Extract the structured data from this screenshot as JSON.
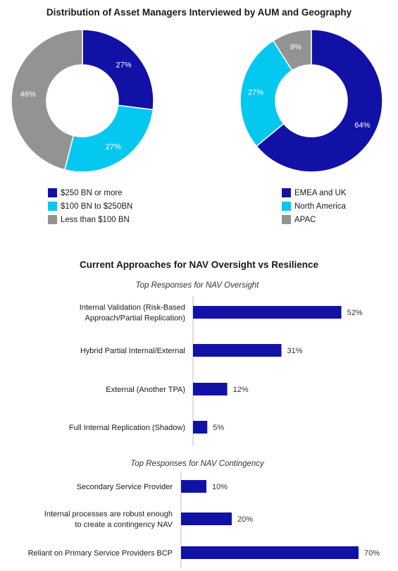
{
  "page": {
    "title": "Distribution of Asset Managers Interviewed by AUM and Geography",
    "section_title": "Current Approaches for NAV Oversight vs Resilience"
  },
  "chart_data": [
    {
      "type": "pie",
      "variant": "donut",
      "slices": [
        {
          "label": "$250 BN or more",
          "value": 27,
          "color": "#1111a6",
          "text": "27%"
        },
        {
          "label": "$100 BN to $250BN",
          "value": 27,
          "color": "#05c8f0",
          "text": "27%"
        },
        {
          "label": "Less than $100 BN",
          "value": 46,
          "color": "#939393",
          "text": "46%"
        }
      ],
      "legend_position": "bottom"
    },
    {
      "type": "pie",
      "variant": "donut",
      "slices": [
        {
          "label": "EMEA and UK",
          "value": 64,
          "color": "#1111a6",
          "text": "64%"
        },
        {
          "label": "North America",
          "value": 27,
          "color": "#05c8f0",
          "text": "27%"
        },
        {
          "label": "APAC",
          "value": 9,
          "color": "#939393",
          "text": "9%"
        }
      ],
      "legend_position": "bottom"
    },
    {
      "type": "bar",
      "orientation": "horizontal",
      "title": "Top Responses for NAV Oversight",
      "categories": [
        [
          "Internal Validation (Risk-Based",
          "Approach/Partial Replication)"
        ],
        [
          "Hybrid Partial Internal/External"
        ],
        [
          "External (Another TPA)"
        ],
        [
          "Full Internal Replication (Shadow)"
        ]
      ],
      "values": [
        52,
        31,
        12,
        5
      ],
      "value_labels": [
        "52%",
        "31%",
        "12%",
        "5%"
      ],
      "color": "#1111a6",
      "xlim": [
        0,
        100
      ]
    },
    {
      "type": "bar",
      "orientation": "horizontal",
      "title": "Top Responses for NAV Contingency",
      "categories": [
        [
          "Secondary Service Provider"
        ],
        [
          "Internal processes are robust enough",
          "to create a contingency NAV"
        ],
        [
          "Reliant on Primary Service Providers BCP"
        ]
      ],
      "values": [
        10,
        20,
        70
      ],
      "value_labels": [
        "10%",
        "20%",
        "70%"
      ],
      "color": "#1111a6",
      "xlim": [
        0,
        100
      ]
    }
  ]
}
